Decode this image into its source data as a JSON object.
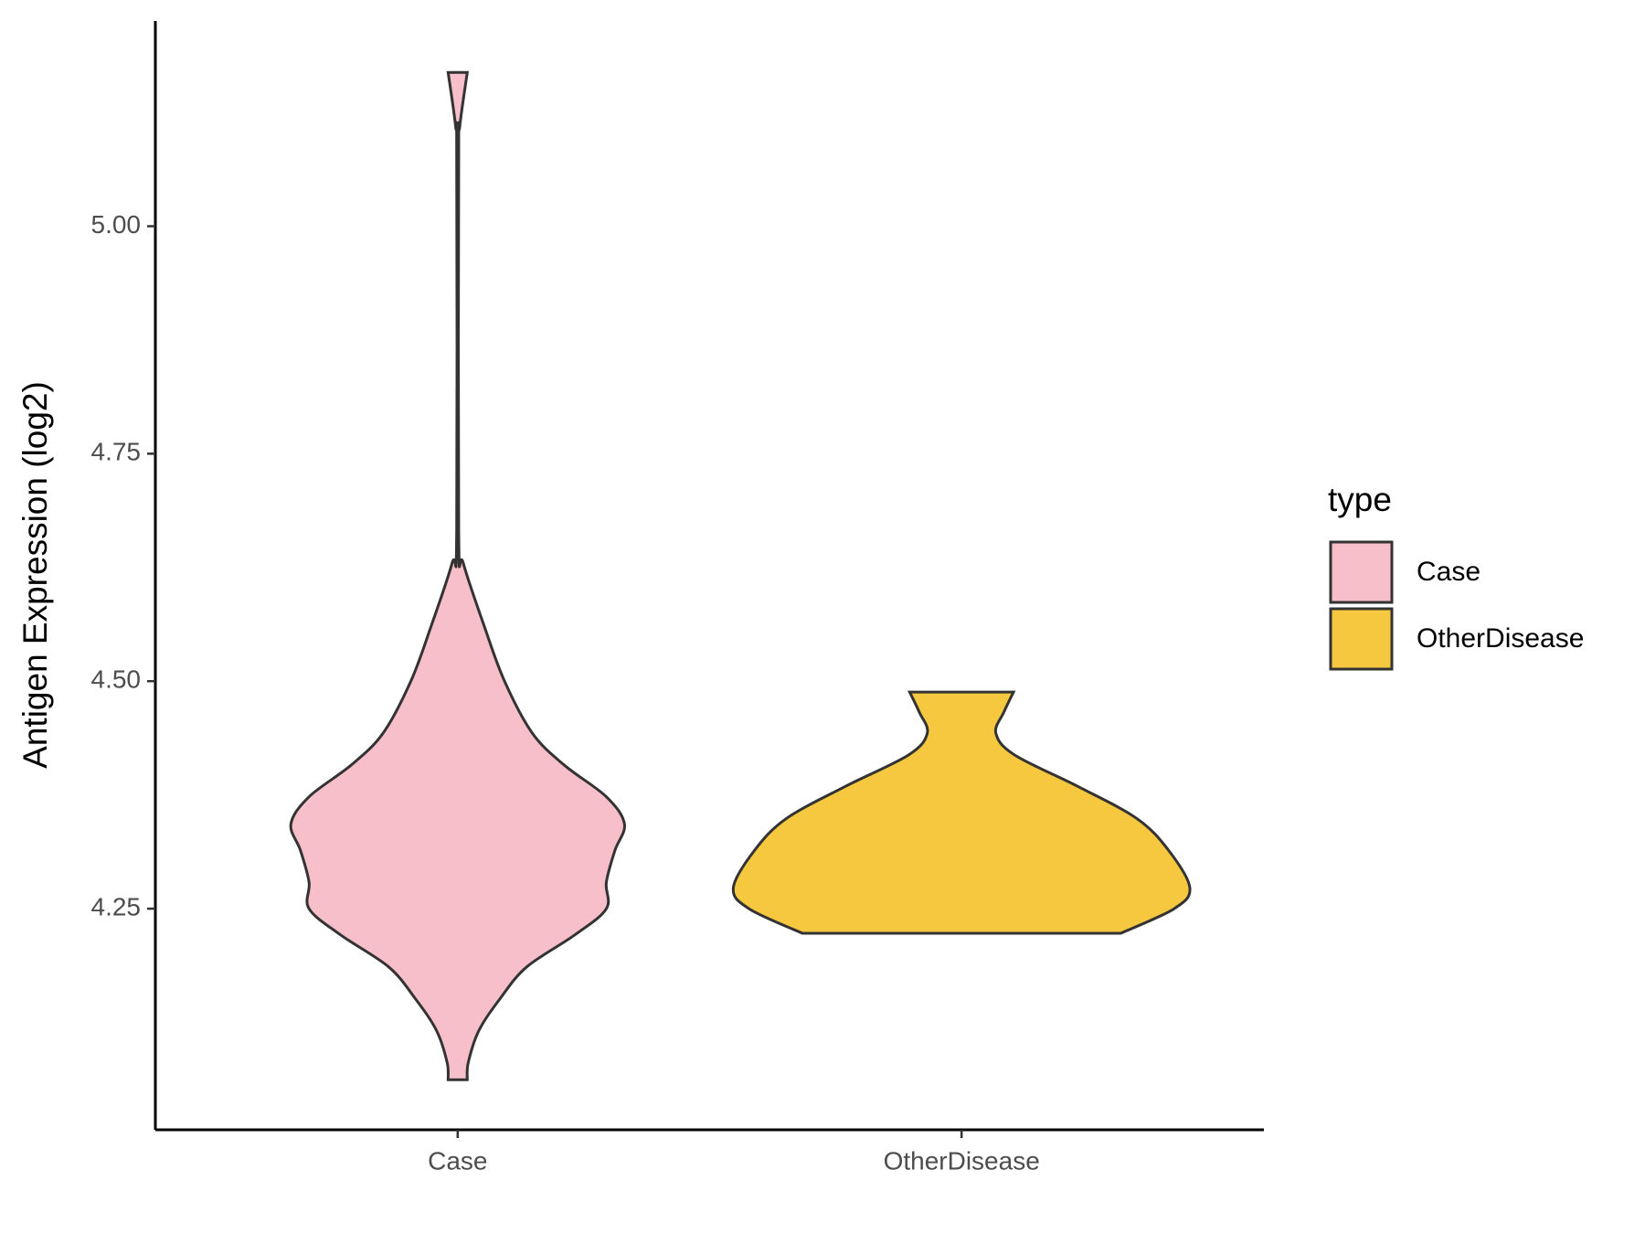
{
  "chart_data": {
    "type": "violin",
    "y_label": "Antigen Expression (log2)",
    "categories": [
      "Case",
      "OtherDisease"
    ],
    "legend_title": "type",
    "ylim": [
      4.007,
      5.2255
    ],
    "yticks": [
      {
        "value": 4.25,
        "label": "4.25"
      },
      {
        "value": 4.5,
        "label": "4.50"
      },
      {
        "value": 4.75,
        "label": "4.75"
      },
      {
        "value": 5,
        "label": "5.00"
      }
    ],
    "series": [
      {
        "name": "Case",
        "color": "#f7bfca",
        "y": [
          5.169,
          5.109,
          5.074,
          4.665,
          4.63,
          4.56,
          4.5,
          4.443,
          4.408,
          4.373,
          4.343,
          4.314,
          4.279,
          4.25,
          4.221,
          4.186,
          4.151,
          4.116,
          4.081,
          4.062
        ],
        "widths": [
          0.019,
          0.004,
          0.002,
          0.002,
          0.011,
          0.053,
          0.093,
          0.148,
          0.211,
          0.295,
          0.331,
          0.312,
          0.295,
          0.295,
          0.232,
          0.137,
          0.084,
          0.042,
          0.021,
          0.019
        ]
      },
      {
        "name": "OtherDisease",
        "color": "#f5c83f",
        "y": [
          4.488,
          4.466,
          4.443,
          4.419,
          4.384,
          4.349,
          4.314,
          4.273,
          4.25,
          4.223
        ],
        "widths": [
          0.103,
          0.084,
          0.068,
          0.105,
          0.232,
          0.348,
          0.411,
          0.453,
          0.422,
          0.316
        ]
      }
    ]
  }
}
